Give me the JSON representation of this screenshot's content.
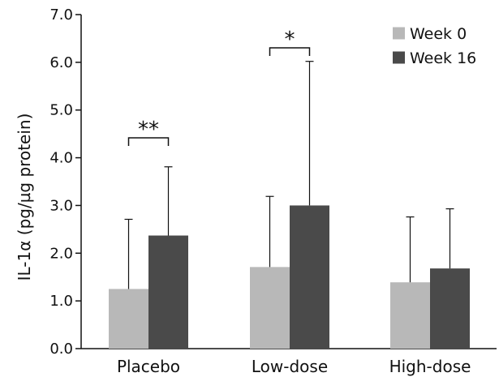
{
  "chart_data": {
    "type": "bar",
    "title": "",
    "xlabel": "",
    "ylabel": "IL-1α (pg/µg protein)",
    "ylim": [
      0,
      7
    ],
    "yticks": [
      "0.0",
      "1.0",
      "2.0",
      "3.0",
      "4.0",
      "5.0",
      "6.0",
      "7.0"
    ],
    "categories": [
      "Placebo",
      "Low-dose",
      "High-dose"
    ],
    "series": [
      {
        "name": "Week 0",
        "color": "#b8b8b8",
        "values": [
          1.25,
          1.71,
          1.39
        ],
        "error_upper": [
          2.71,
          3.19,
          2.76
        ]
      },
      {
        "name": "Week 16",
        "color": "#4a4a4a",
        "values": [
          2.37,
          3.0,
          1.68
        ],
        "error_upper": [
          3.81,
          6.02,
          2.93
        ]
      }
    ],
    "error_bars": "upper only",
    "legend": "top-right",
    "grid": false,
    "significance": [
      {
        "category": "Placebo",
        "label": "**"
      },
      {
        "category": "Low-dose",
        "label": "*"
      }
    ]
  }
}
